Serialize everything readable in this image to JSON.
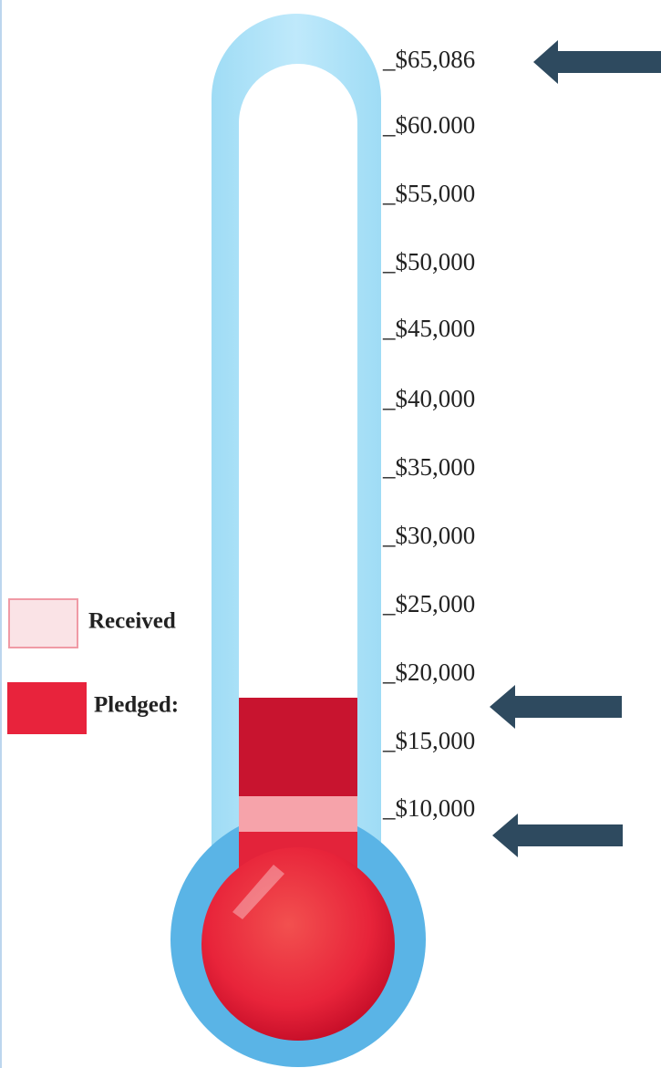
{
  "scale": {
    "labels": [
      "_$65,086",
      "_$60.000",
      "_$55,000",
      "_$50,000",
      "_$45,000",
      "_$40,000",
      "_$35,000",
      "_$30,000",
      "_$25,000",
      "_$20,000",
      "_$15,000",
      "_$10,000"
    ]
  },
  "legend": {
    "received": "Received",
    "pledged": "Pledged:"
  }
}
